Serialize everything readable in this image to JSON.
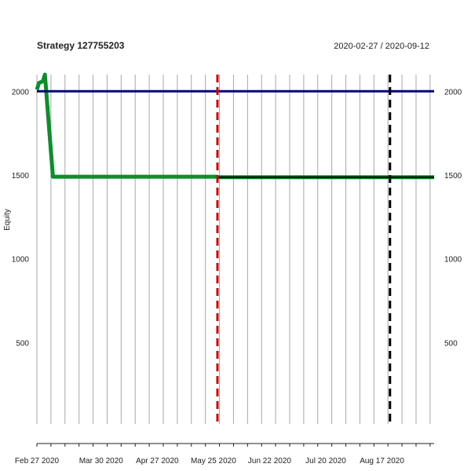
{
  "chart_data": {
    "type": "line",
    "title": "Strategy 127755203",
    "date_range": "2020-02-27 / 2020-09-12",
    "ylabel": "Equity",
    "xlabel": "",
    "x_range": [
      "2020-02-27",
      "2020-09-12"
    ],
    "ylim": [
      0,
      2100
    ],
    "y_ticks": [
      500,
      1000,
      1500,
      2000
    ],
    "x_tick_labels": [
      {
        "date": "2020-02-27",
        "label": "Feb 27 2020"
      },
      {
        "date": "2020-03-30",
        "label": "Mar 30 2020"
      },
      {
        "date": "2020-04-27",
        "label": "Apr 27 2020"
      },
      {
        "date": "2020-05-25",
        "label": "May 25 2020"
      },
      {
        "date": "2020-06-22",
        "label": "Jun 22 2020"
      },
      {
        "date": "2020-07-20",
        "label": "Jul 20 2020"
      },
      {
        "date": "2020-08-17",
        "label": "Aug 17 2020"
      }
    ],
    "grid": true,
    "series": [
      {
        "color": "#0a8f2a",
        "points": [
          {
            "x": "2020-02-27",
            "y": 2010
          },
          {
            "x": "2020-02-28",
            "y": 2050
          },
          {
            "x": "2020-03-01",
            "y": 2060
          },
          {
            "x": "2020-03-02",
            "y": 2100
          },
          {
            "x": "2020-03-06",
            "y": 1490
          },
          {
            "x": "2020-05-27",
            "y": 1490
          }
        ]
      },
      {
        "color": "#0a8f2a",
        "points": [
          {
            "x": "2020-05-27",
            "y": 1487
          },
          {
            "x": "2020-09-12",
            "y": 1487
          }
        ]
      },
      {
        "color": "#000000",
        "points": [
          {
            "x": "2020-05-27",
            "y": 1487
          },
          {
            "x": "2020-09-12",
            "y": 1487
          }
        ]
      },
      {
        "color": "#000080",
        "points": [
          {
            "x": "2020-02-27",
            "y": 2000
          },
          {
            "x": "2020-09-12",
            "y": 2000
          }
        ]
      }
    ],
    "vertical_markers": [
      {
        "x": "2020-05-27",
        "color": "#dd0000",
        "style": "dashed"
      },
      {
        "x": "2020-08-21",
        "color": "#000000",
        "style": "dashed"
      }
    ]
  }
}
